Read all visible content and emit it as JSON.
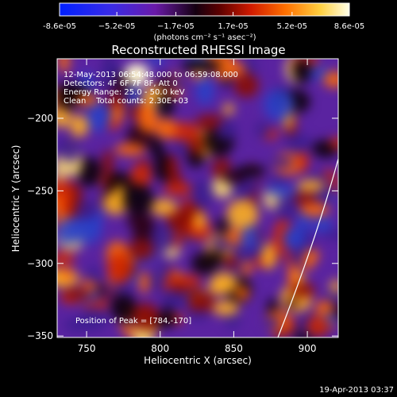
{
  "chart_data": {
    "type": "heatmap",
    "title": "Reconstructed RHESSI Image",
    "xlabel": "Heliocentric X (arcsec)",
    "ylabel": "Heliocentric Y (arcsec)",
    "xlim": [
      730,
      921
    ],
    "ylim": [
      -351,
      -159
    ],
    "x_ticks": [
      750,
      800,
      850,
      900
    ],
    "y_ticks": [
      -200,
      -250,
      -300,
      -350
    ],
    "colorbar": {
      "min": -8.6e-05,
      "max": 8.6e-05,
      "tick_values": [
        -8.6e-05,
        -5.2e-05,
        -1.7e-05,
        1.7e-05,
        5.2e-05,
        8.6e-05
      ],
      "tick_labels": [
        "-8.6e-05",
        "−5.2e-05",
        "−1.7e-05",
        "1.7e-05",
        "5.2e-05",
        "8.6e-05"
      ],
      "unit_label": "(photons cm⁻² s⁻¹ asec⁻²)"
    },
    "annotations": {
      "time_range": "12-May-2013 06:54:48.000 to 06:59:08.000",
      "detectors": "Detectors: 4F 6F 7F 8F, Att 0",
      "energy_range": "Energy Range: 25.0 - 50.0 keV",
      "method": "Clean    Total counts: 2.30E+03",
      "peak": "Position of Peak = [784,-170]"
    },
    "peak_position": [
      784,
      -170
    ],
    "limb_curve_x": [
      [
        921,
        -228
      ],
      [
        880,
        -351
      ]
    ],
    "grid": false,
    "legend": "none"
  },
  "footer": {
    "timestamp": "19-Apr-2013 03:37"
  }
}
